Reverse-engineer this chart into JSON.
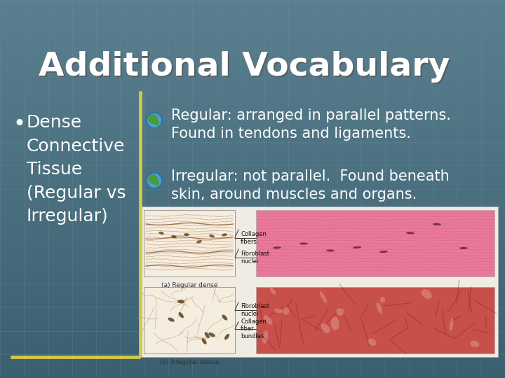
{
  "title": "Additional Vocabulary",
  "title_fontsize": 34,
  "title_color": "#FFFFFF",
  "title_shadow_color": "#555555",
  "bg_color": "#5a7f8f",
  "grid_color": "#6a8f9f",
  "bullet_text": "Dense\nConnective\nTissue\n(Regular vs\nIrregular)",
  "bullet_fontsize": 18,
  "bullet_color": "#FFFFFF",
  "divider_color": "#d4c84a",
  "point1_text": "Regular: arranged in parallel patterns.\nFound in tendons and ligaments.",
  "point2_text": "Irregular: not parallel.  Found beneath\nskin, around muscles and organs.",
  "points_fontsize": 15,
  "points_color": "#FFFFFF",
  "figsize": [
    7.2,
    5.4
  ],
  "dpi": 100
}
